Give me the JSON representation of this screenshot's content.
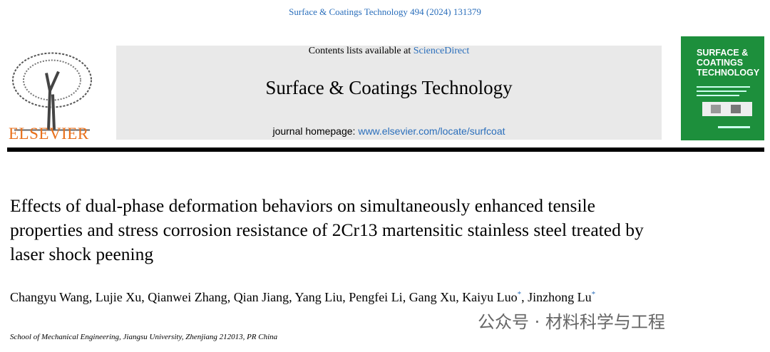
{
  "citation": "Surface & Coatings Technology 494 (2024) 131379",
  "publisher": "ELSEVIER",
  "masthead": {
    "contents_prefix": "Contents lists available at",
    "contents_link": "ScienceDirect",
    "journal": "Surface & Coatings Technology",
    "homepage_prefix": "journal homepage:",
    "homepage_link": "www.elsevier.com/locate/surfcoat"
  },
  "cover": {
    "title": "SURFACE & COATINGS TECHNOLOGY"
  },
  "article": {
    "title": "Effects of dual-phase deformation behaviors on simultaneously enhanced tensile properties and stress corrosion resistance of 2Cr13 martensitic stainless steel treated by laser shock peening",
    "separator": ",",
    "authors": [
      {
        "name": "Changyu Wang"
      },
      {
        "name": "Lujie Xu"
      },
      {
        "name": "Qianwei Zhang"
      },
      {
        "name": "Qian Jiang"
      },
      {
        "name": "Yang Liu"
      },
      {
        "name": "Pengfei Li"
      },
      {
        "name": "Gang Xu"
      },
      {
        "name": "Kaiyu Luo",
        "mark": "*"
      },
      {
        "name": "Jinzhong Lu",
        "mark": "*"
      }
    ],
    "affiliation": "School of Mechanical Engineering, Jiangsu University, Zhenjiang 212013, PR China"
  },
  "watermark": "公众号 · 材料科学与工程"
}
